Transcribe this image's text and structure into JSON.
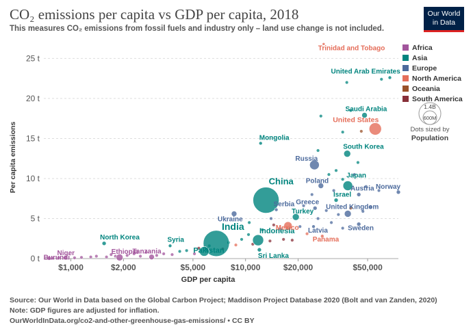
{
  "header": {
    "title": "CO₂ emissions per capita vs GDP per capita, 2018",
    "subtitle": "This measures CO₂ emissions from fossil fuels and industry  only – land use change is not included."
  },
  "logo": {
    "line1": "Our World",
    "line2": "in Data"
  },
  "footer": {
    "source": "Source: Our World in Data based on the Global Carbon Project; Maddison Project Database 2020 (Bolt and van Zanden, 2020)",
    "note": "Note: GDP figures are adjusted for inflation.",
    "url": "OurWorldInData.org/co2-and-other-greenhouse-gas-emissions/ • CC BY"
  },
  "size_key": {
    "max_label": "1.4B",
    "min_label": "600M",
    "note": "Dots sized by",
    "dimension": "Population"
  },
  "chart_data": {
    "type": "scatter",
    "title": "CO₂ emissions per capita vs GDP per capita, 2018",
    "xlabel": "GDP per capita",
    "ylabel": "Per capita emissions",
    "x_scale": "log",
    "xlim": [
      700,
      75000
    ],
    "ylim": [
      0,
      27
    ],
    "x_ticks": [
      {
        "v": 1000,
        "label": "$1,000"
      },
      {
        "v": 2000,
        "label": "$2,000"
      },
      {
        "v": 5000,
        "label": "$5,000"
      },
      {
        "v": 10000,
        "label": "$10,000"
      },
      {
        "v": 20000,
        "label": "$20,000"
      },
      {
        "v": 50000,
        "label": "$50,000"
      }
    ],
    "y_ticks": [
      {
        "v": 0,
        "label": "0 t"
      },
      {
        "v": 5,
        "label": "5 t"
      },
      {
        "v": 10,
        "label": "10 t"
      },
      {
        "v": 15,
        "label": "15 t"
      },
      {
        "v": 20,
        "label": "20 t"
      },
      {
        "v": 25,
        "label": "25 t"
      }
    ],
    "grid": "horizontal dashed",
    "legend_position": "right",
    "regions": [
      {
        "name": "Africa",
        "color": "#a2559c"
      },
      {
        "name": "Asia",
        "color": "#00847e"
      },
      {
        "name": "Europe",
        "color": "#4c6a9c"
      },
      {
        "name": "North America",
        "color": "#e56e5a"
      },
      {
        "name": "Oceania",
        "color": "#9a5129"
      },
      {
        "name": "South America",
        "color": "#883039"
      }
    ],
    "labeled_points": [
      {
        "label": "Burundi",
        "x": 750,
        "y": 0.05,
        "region": "Africa",
        "r": 3
      },
      {
        "label": "Niger",
        "x": 930,
        "y": 0.1,
        "region": "Africa",
        "r": 3
      },
      {
        "label": "Ethiopia",
        "x": 1900,
        "y": 0.15,
        "region": "Africa",
        "r": 5
      },
      {
        "label": "Tanzania",
        "x": 2900,
        "y": 0.2,
        "region": "Africa",
        "r": 4
      },
      {
        "label": "North Korea",
        "x": 1550,
        "y": 1.9,
        "region": "Asia",
        "r": 3
      },
      {
        "label": "Syria",
        "x": 3700,
        "y": 1.6,
        "region": "Asia",
        "r": 2.5
      },
      {
        "label": "India",
        "x": 6800,
        "y": 1.9,
        "region": "Asia",
        "r": 19
      },
      {
        "label": "Pakistan",
        "x": 5800,
        "y": 0.9,
        "region": "Asia",
        "r": 7
      },
      {
        "label": "Indonesia",
        "x": 11800,
        "y": 2.3,
        "region": "Asia",
        "r": 8
      },
      {
        "label": "Sri Lanka",
        "x": 12000,
        "y": 1.1,
        "region": "Asia",
        "r": 3
      },
      {
        "label": "China",
        "x": 13100,
        "y": 7.3,
        "region": "Asia",
        "r": 19
      },
      {
        "label": "Ukraine",
        "x": 8600,
        "y": 5.6,
        "region": "Europe",
        "r": 4
      },
      {
        "label": "Serbia",
        "x": 15000,
        "y": 6.1,
        "region": "Europe",
        "r": 2.5
      },
      {
        "label": "Mongolia",
        "x": 12200,
        "y": 14.4,
        "region": "Asia",
        "r": 2.5
      },
      {
        "label": "Turkey",
        "x": 19400,
        "y": 5.2,
        "region": "Asia",
        "r": 5
      },
      {
        "label": "Mexico",
        "x": 17500,
        "y": 4.1,
        "region": "North America",
        "r": 6
      },
      {
        "label": "Latvia",
        "x": 24500,
        "y": 4.0,
        "region": "Europe",
        "r": 2.5
      },
      {
        "label": "Greece",
        "x": 25000,
        "y": 6.3,
        "region": "Europe",
        "r": 3
      },
      {
        "label": "Israel",
        "x": 33000,
        "y": 7.3,
        "region": "Asia",
        "r": 3
      },
      {
        "label": "Poland",
        "x": 27000,
        "y": 9.1,
        "region": "Europe",
        "r": 4
      },
      {
        "label": "Japan",
        "x": 38500,
        "y": 9.1,
        "region": "Asia",
        "r": 7
      },
      {
        "label": "Austria",
        "x": 44500,
        "y": 8.0,
        "region": "Europe",
        "r": 3
      },
      {
        "label": "Norway",
        "x": 75000,
        "y": 8.3,
        "region": "Europe",
        "r": 3
      },
      {
        "label": "United Kingdom",
        "x": 38500,
        "y": 5.6,
        "region": "Europe",
        "r": 5
      },
      {
        "label": "Sweden",
        "x": 44500,
        "y": 4.3,
        "region": "Europe",
        "r": 3
      },
      {
        "label": "Panama",
        "x": 27500,
        "y": 2.8,
        "region": "North America",
        "r": 2.5
      },
      {
        "label": "Russia",
        "x": 24800,
        "y": 11.7,
        "region": "Europe",
        "r": 7
      },
      {
        "label": "South Korea",
        "x": 38200,
        "y": 13.1,
        "region": "Asia",
        "r": 5
      },
      {
        "label": "United States",
        "x": 55300,
        "y": 16.2,
        "region": "North America",
        "r": 9
      },
      {
        "label": "Saudi Arabia",
        "x": 48000,
        "y": 17.9,
        "region": "Asia",
        "r": 4
      },
      {
        "label": "United Arab Emirates",
        "x": 67000,
        "y": 22.6,
        "region": "Asia",
        "r": 2.5
      },
      {
        "label": "Trinidad and Tobago",
        "x": 28000,
        "y": 26.8,
        "region": "North America",
        "r": 2
      }
    ],
    "unlabeled_points": [
      {
        "x": 780,
        "y": 0.05,
        "region": "Africa"
      },
      {
        "x": 850,
        "y": 0.1,
        "region": "Africa"
      },
      {
        "x": 1050,
        "y": 0.1,
        "region": "Africa"
      },
      {
        "x": 1150,
        "y": 0.15,
        "region": "Africa"
      },
      {
        "x": 1300,
        "y": 0.2,
        "region": "Africa"
      },
      {
        "x": 1400,
        "y": 0.3,
        "region": "Africa"
      },
      {
        "x": 1600,
        "y": 0.2,
        "region": "Africa"
      },
      {
        "x": 1700,
        "y": 0.5,
        "region": "Africa"
      },
      {
        "x": 1800,
        "y": 0.3,
        "region": "Africa"
      },
      {
        "x": 2100,
        "y": 0.4,
        "region": "Africa"
      },
      {
        "x": 2300,
        "y": 0.6,
        "region": "Africa"
      },
      {
        "x": 2500,
        "y": 0.3,
        "region": "Africa"
      },
      {
        "x": 2700,
        "y": 0.8,
        "region": "Africa"
      },
      {
        "x": 3100,
        "y": 0.4,
        "region": "Africa"
      },
      {
        "x": 3400,
        "y": 0.6,
        "region": "Africa"
      },
      {
        "x": 3800,
        "y": 0.5,
        "region": "Africa"
      },
      {
        "x": 4200,
        "y": 0.9,
        "region": "Asia"
      },
      {
        "x": 4600,
        "y": 1.0,
        "region": "Asia"
      },
      {
        "x": 5100,
        "y": 0.6,
        "region": "Africa"
      },
      {
        "x": 5400,
        "y": 1.3,
        "region": "South America"
      },
      {
        "x": 6200,
        "y": 1.6,
        "region": "Asia"
      },
      {
        "x": 7400,
        "y": 1.2,
        "region": "South America"
      },
      {
        "x": 8000,
        "y": 2.0,
        "region": "Asia"
      },
      {
        "x": 8800,
        "y": 1.7,
        "region": "North America"
      },
      {
        "x": 9500,
        "y": 2.4,
        "region": "Asia"
      },
      {
        "x": 10400,
        "y": 3.0,
        "region": "Asia"
      },
      {
        "x": 11000,
        "y": 1.8,
        "region": "South America"
      },
      {
        "x": 13800,
        "y": 2.2,
        "region": "South America"
      },
      {
        "x": 14500,
        "y": 4.2,
        "region": "South America"
      },
      {
        "x": 15800,
        "y": 3.7,
        "region": "Europe"
      },
      {
        "x": 16500,
        "y": 2.4,
        "region": "South America"
      },
      {
        "x": 18500,
        "y": 2.3,
        "region": "South America"
      },
      {
        "x": 20500,
        "y": 4.0,
        "region": "Europe"
      },
      {
        "x": 21500,
        "y": 6.6,
        "region": "Europe"
      },
      {
        "x": 22500,
        "y": 3.1,
        "region": "North America"
      },
      {
        "x": 26000,
        "y": 5.0,
        "region": "Europe"
      },
      {
        "x": 29000,
        "y": 6.0,
        "region": "Europe"
      },
      {
        "x": 31000,
        "y": 4.5,
        "region": "Europe"
      },
      {
        "x": 34000,
        "y": 5.5,
        "region": "Europe"
      },
      {
        "x": 36000,
        "y": 3.8,
        "region": "Europe"
      },
      {
        "x": 40000,
        "y": 6.3,
        "region": "Oceania"
      },
      {
        "x": 47000,
        "y": 5.9,
        "region": "Europe"
      },
      {
        "x": 52000,
        "y": 6.4,
        "region": "Europe"
      },
      {
        "x": 58000,
        "y": 8.5,
        "region": "Europe"
      },
      {
        "x": 30000,
        "y": 10.5,
        "region": "Asia"
      },
      {
        "x": 36000,
        "y": 9.9,
        "region": "Asia"
      },
      {
        "x": 42000,
        "y": 10.5,
        "region": "Europe"
      },
      {
        "x": 26000,
        "y": 13.5,
        "region": "Asia"
      },
      {
        "x": 33000,
        "y": 11.0,
        "region": "Asia"
      },
      {
        "x": 44000,
        "y": 12.0,
        "region": "Asia"
      },
      {
        "x": 36000,
        "y": 15.8,
        "region": "Asia"
      },
      {
        "x": 46000,
        "y": 15.9,
        "region": "Oceania"
      },
      {
        "x": 27000,
        "y": 17.8,
        "region": "Asia"
      },
      {
        "x": 38000,
        "y": 22.0,
        "region": "Asia"
      },
      {
        "x": 60000,
        "y": 22.4,
        "region": "Asia"
      },
      {
        "x": 40000,
        "y": 18.5,
        "region": "Asia"
      },
      {
        "x": 12500,
        "y": 3.6,
        "region": "Asia"
      },
      {
        "x": 14000,
        "y": 5.0,
        "region": "Europe"
      },
      {
        "x": 10500,
        "y": 4.5,
        "region": "Asia"
      },
      {
        "x": 24000,
        "y": 8.0,
        "region": "Europe"
      },
      {
        "x": 32000,
        "y": 8.5,
        "region": "Europe"
      },
      {
        "x": 49000,
        "y": 9.0,
        "region": "Europe"
      }
    ]
  }
}
